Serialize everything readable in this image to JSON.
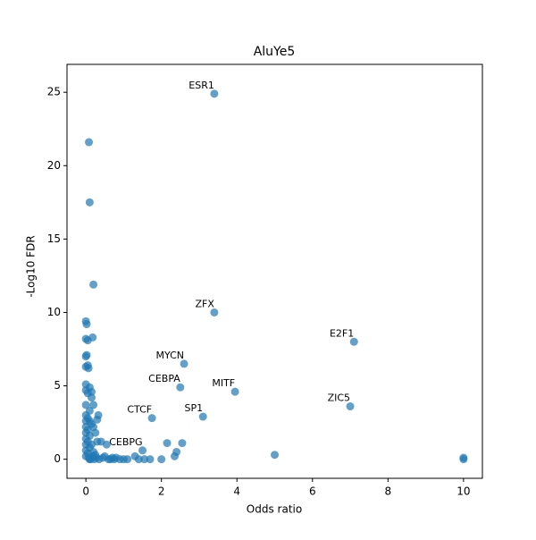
{
  "chart_data": {
    "type": "scatter",
    "title": "AluYe5",
    "x_label": "Odds ratio",
    "y_label": "-Log10 FDR",
    "color": "#1f77b4",
    "x": [
      3.4,
      3.4,
      7.1,
      2.6,
      2.5,
      3.95,
      7.0,
      1.75,
      3.1,
      1.5,
      0.08,
      0.1,
      0.2,
      0.0,
      0.02,
      0.0,
      0.05,
      0.18,
      0.0,
      0.02,
      0.0,
      0.05,
      0.07,
      0.0,
      0.0,
      0.05,
      0.1,
      0.15,
      0.15,
      0.2,
      0.0,
      0.1,
      0.33,
      0.0,
      0.0,
      0.0,
      0.0,
      0.0,
      0.0,
      0.0,
      0.0,
      0.05,
      0.05,
      0.05,
      0.05,
      0.1,
      0.1,
      0.1,
      0.1,
      0.15,
      0.15,
      0.2,
      0.2,
      0.25,
      0.25,
      0.3,
      0.3,
      0.12,
      0.22,
      0.08,
      0.18,
      0.28,
      0.35,
      0.4,
      0.45,
      0.5,
      0.55,
      0.6,
      0.7,
      0.8,
      0.9,
      1.0,
      1.1,
      1.3,
      1.4,
      1.7,
      2.0,
      2.15,
      2.55,
      2.4,
      2.35,
      5.0,
      10.0,
      10.0,
      0.65,
      0.75,
      1.55
    ],
    "y": [
      24.9,
      10.0,
      8.0,
      6.5,
      4.9,
      4.6,
      3.6,
      2.8,
      2.9,
      0.6,
      21.6,
      17.5,
      11.9,
      9.4,
      9.2,
      8.2,
      8.1,
      8.3,
      7.0,
      7.1,
      6.3,
      6.4,
      6.2,
      5.1,
      4.7,
      4.5,
      4.9,
      4.6,
      4.2,
      3.7,
      3.7,
      3.3,
      3.0,
      3.0,
      2.6,
      2.2,
      1.8,
      1.4,
      1.0,
      0.6,
      0.2,
      2.8,
      2.0,
      1.2,
      0.4,
      2.6,
      1.6,
      0.8,
      0.0,
      2.4,
      1.0,
      2.2,
      0.5,
      1.8,
      0.3,
      2.7,
      1.2,
      0.0,
      0.0,
      0.1,
      0.2,
      0.1,
      0.0,
      1.2,
      0.1,
      0.2,
      1.0,
      0.0,
      0.1,
      0.1,
      0.0,
      0.0,
      0.0,
      0.2,
      0.0,
      0.0,
      0.0,
      1.1,
      1.1,
      0.5,
      0.2,
      0.3,
      0.1,
      0.0,
      0.0,
      0.0,
      0.0
    ],
    "labels": [
      "ESR1",
      "ZFX",
      "E2F1",
      "MYCN",
      "CEBPA",
      "MITF",
      "ZIC5",
      "CTCF",
      "SP1",
      "CEBPG"
    ],
    "xlim": [
      -0.5,
      10.5
    ],
    "ylim": [
      -1.3,
      26.9
    ],
    "xticks": [
      0,
      2,
      4,
      6,
      8,
      10
    ],
    "yticks": [
      0,
      5,
      10,
      15,
      20,
      25
    ]
  }
}
